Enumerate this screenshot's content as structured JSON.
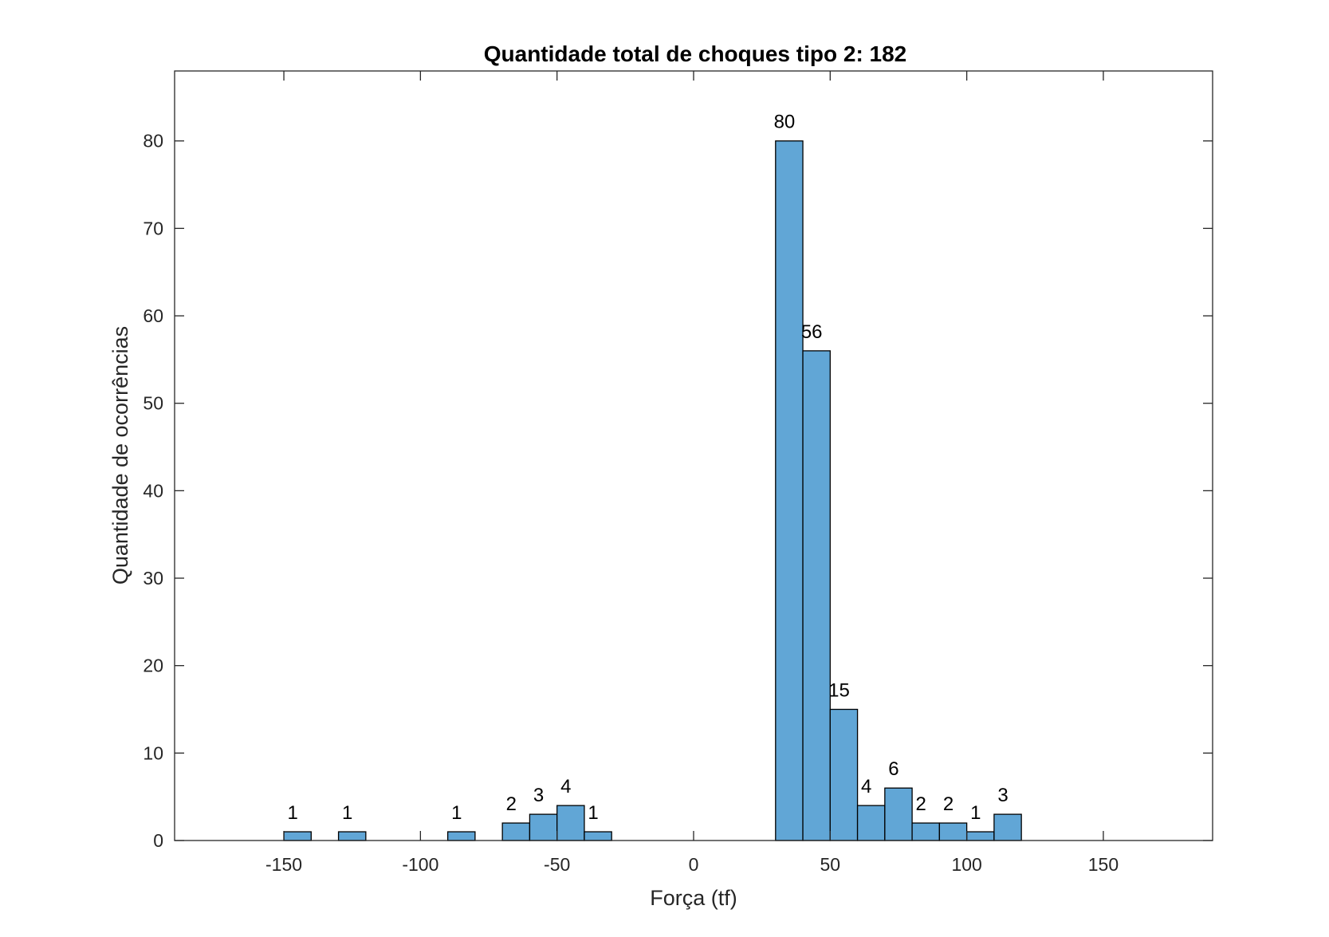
{
  "chart_data": {
    "type": "bar",
    "title": "Quantidade total de choques tipo 2: 182",
    "xlabel": "Força (tf)",
    "ylabel": "Quantidade de ocorrências",
    "xlim": [
      -190,
      190
    ],
    "ylim": [
      0,
      88
    ],
    "xticks": [
      -150,
      -100,
      -50,
      0,
      50,
      100,
      150
    ],
    "xtick_labels": [
      "-150",
      "-100",
      "-50",
      "0",
      "50",
      "100",
      "150"
    ],
    "yticks": [
      0,
      10,
      20,
      30,
      40,
      50,
      60,
      70,
      80
    ],
    "ytick_labels": [
      "0",
      "10",
      "20",
      "30",
      "40",
      "50",
      "60",
      "70",
      "80"
    ],
    "bin_width": 10,
    "bars": [
      {
        "x0": -150,
        "x1": -140,
        "value": 1,
        "label": "1"
      },
      {
        "x0": -130,
        "x1": -120,
        "value": 1,
        "label": "1"
      },
      {
        "x0": -90,
        "x1": -80,
        "value": 1,
        "label": "1"
      },
      {
        "x0": -70,
        "x1": -60,
        "value": 2,
        "label": "2"
      },
      {
        "x0": -60,
        "x1": -50,
        "value": 3,
        "label": "3"
      },
      {
        "x0": -50,
        "x1": -40,
        "value": 4,
        "label": "4"
      },
      {
        "x0": -40,
        "x1": -30,
        "value": 1,
        "label": "1"
      },
      {
        "x0": 30,
        "x1": 40,
        "value": 80,
        "label": "80"
      },
      {
        "x0": 40,
        "x1": 50,
        "value": 56,
        "label": "56"
      },
      {
        "x0": 50,
        "x1": 60,
        "value": 15,
        "label": "15"
      },
      {
        "x0": 60,
        "x1": 70,
        "value": 4,
        "label": "4"
      },
      {
        "x0": 70,
        "x1": 80,
        "value": 6,
        "label": "6"
      },
      {
        "x0": 80,
        "x1": 90,
        "value": 2,
        "label": "2"
      },
      {
        "x0": 90,
        "x1": 100,
        "value": 2,
        "label": "2"
      },
      {
        "x0": 100,
        "x1": 110,
        "value": 1,
        "label": "1"
      },
      {
        "x0": 110,
        "x1": 120,
        "value": 3,
        "label": "3"
      }
    ],
    "bar_color": "#61A6D6",
    "grid": false,
    "legend": "none"
  }
}
